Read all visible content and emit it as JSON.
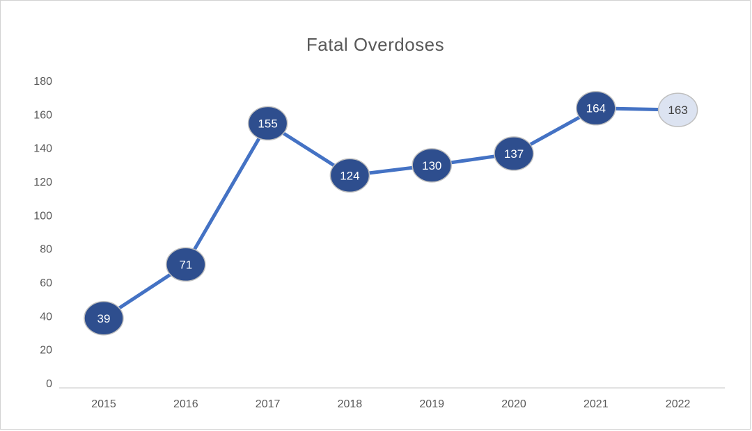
{
  "chart_data": {
    "type": "line",
    "title": "Fatal Overdoses",
    "categories": [
      "2015",
      "2016",
      "2017",
      "2018",
      "2019",
      "2020",
      "2021",
      "2022"
    ],
    "values": [
      39,
      71,
      155,
      124,
      130,
      137,
      164,
      163
    ],
    "series": [
      {
        "name": "Fatal Overdoses",
        "values": [
          39,
          71,
          155,
          124,
          130,
          137,
          164,
          163
        ]
      }
    ],
    "xlabel": "",
    "ylabel": "",
    "ylim": [
      0,
      180
    ],
    "yticks": [
      0,
      20,
      40,
      60,
      80,
      100,
      120,
      140,
      160,
      180
    ],
    "grid": false,
    "legend": "none",
    "marker_shape": "ellipse",
    "data_labels": "inside-marker",
    "colors": {
      "line": "#4472C4",
      "marker_fill": "#2E4E8E",
      "marker_fill_last": "#DCE3F1",
      "marker_stroke": "#BFBFBF",
      "label_text": "#FFFFFF",
      "label_text_last": "#404040",
      "axis_text": "#595959",
      "axis_line": "#D9D9D9",
      "title_text": "#595959",
      "frame_border": "#D2D2D2"
    }
  }
}
